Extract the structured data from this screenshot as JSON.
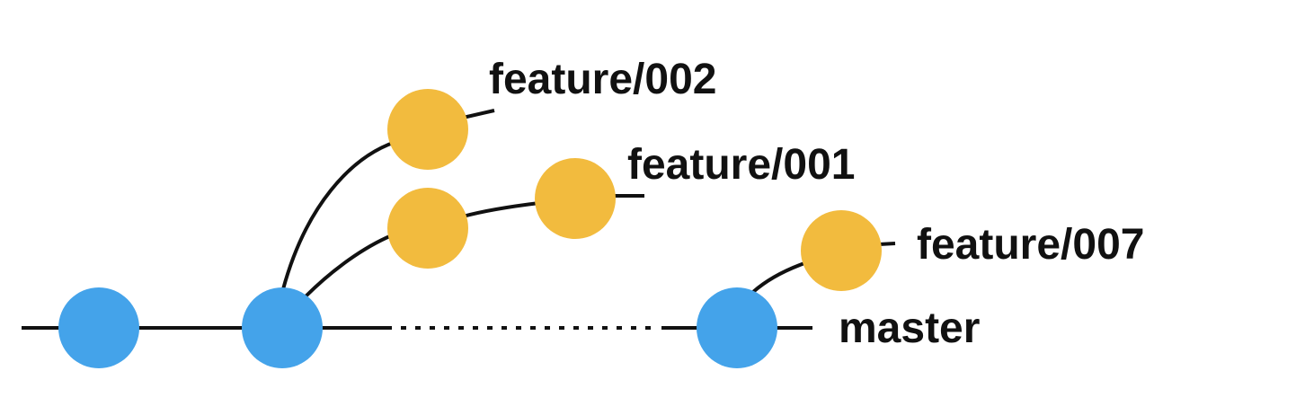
{
  "diagram": {
    "colors": {
      "master_commit": "#44A3EA",
      "feature_commit": "#F2BB3E",
      "line": "#111111",
      "text": "#111111",
      "background": "#ffffff"
    },
    "branches": [
      {
        "name": "master",
        "label": "master",
        "commit_count": 3
      },
      {
        "name": "feature/002",
        "label": "feature/002",
        "commit_count": 1
      },
      {
        "name": "feature/001",
        "label": "feature/001",
        "commit_count": 2
      },
      {
        "name": "feature/007",
        "label": "feature/007",
        "commit_count": 1
      }
    ]
  }
}
